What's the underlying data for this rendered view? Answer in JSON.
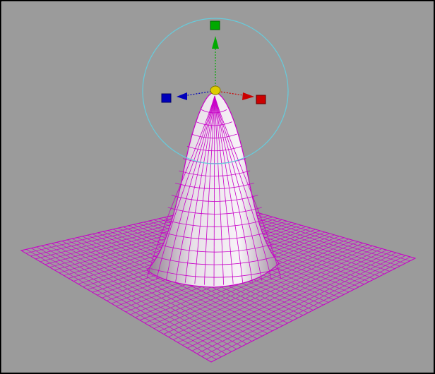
{
  "viewport": {
    "background": "#9b9b9b",
    "border": "#000000"
  },
  "mesh": {
    "object": "gaussian-surface",
    "wire_color": "#c800c8",
    "shade_light": "#f4eef4",
    "shade_dark": "#9b8b9b",
    "plane_color": "#b978b9"
  },
  "manipulator": {
    "tool": "move",
    "ring_color": "#66ccdd",
    "axis_y_color": "#00aa00",
    "axis_x_color": "#cc0000",
    "axis_z_color": "#0000bb",
    "center_color": "#ddcc00"
  }
}
